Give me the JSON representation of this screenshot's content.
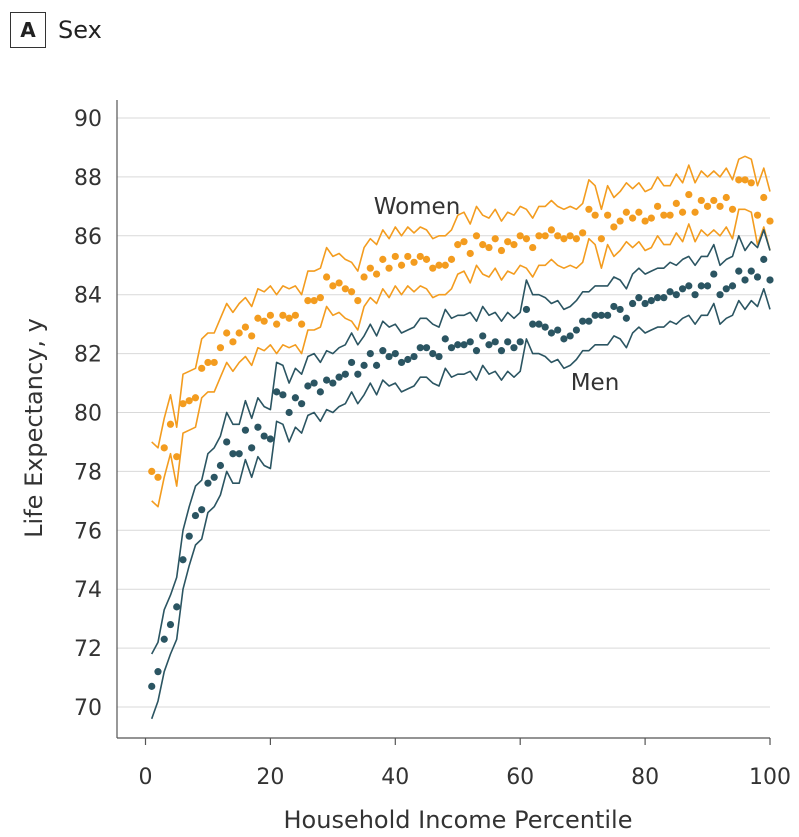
{
  "panel": {
    "letter": "A",
    "title": "Sex"
  },
  "chart_data": {
    "type": "scatter",
    "title": "Sex",
    "xlabel": "Household Income Percentile",
    "ylabel": "Life Expectancy, y",
    "xlim": [
      0,
      100
    ],
    "ylim": [
      69,
      90
    ],
    "xticks": [
      0,
      20,
      40,
      60,
      80,
      100
    ],
    "yticks": [
      70,
      72,
      74,
      76,
      78,
      80,
      82,
      84,
      86,
      88,
      90
    ],
    "grid": "horizontal",
    "legend": "inline labels",
    "series": [
      {
        "name": "Women",
        "color": "#F39C1F",
        "x": [
          1,
          2,
          3,
          4,
          5,
          6,
          7,
          8,
          9,
          10,
          11,
          12,
          13,
          14,
          15,
          16,
          17,
          18,
          19,
          20,
          21,
          22,
          23,
          24,
          25,
          26,
          27,
          28,
          29,
          30,
          31,
          32,
          33,
          34,
          35,
          36,
          37,
          38,
          39,
          40,
          41,
          42,
          43,
          44,
          45,
          46,
          47,
          48,
          49,
          50,
          51,
          52,
          53,
          54,
          55,
          56,
          57,
          58,
          59,
          60,
          61,
          62,
          63,
          64,
          65,
          66,
          67,
          68,
          69,
          70,
          71,
          72,
          73,
          74,
          75,
          76,
          77,
          78,
          79,
          80,
          81,
          82,
          83,
          84,
          85,
          86,
          87,
          88,
          89,
          90,
          91,
          92,
          93,
          94,
          95,
          96,
          97,
          98,
          99,
          100
        ],
        "values": [
          78.0,
          77.8,
          78.8,
          79.6,
          78.5,
          80.3,
          80.4,
          80.5,
          81.5,
          81.7,
          81.7,
          82.2,
          82.7,
          82.4,
          82.7,
          82.9,
          82.6,
          83.2,
          83.1,
          83.3,
          83.0,
          83.3,
          83.2,
          83.3,
          83.0,
          83.8,
          83.8,
          83.9,
          84.6,
          84.3,
          84.4,
          84.2,
          84.1,
          83.8,
          84.6,
          84.9,
          84.7,
          85.2,
          84.9,
          85.3,
          85.0,
          85.3,
          85.1,
          85.3,
          85.2,
          84.9,
          85.0,
          85.0,
          85.2,
          85.7,
          85.8,
          85.4,
          86.0,
          85.7,
          85.6,
          85.9,
          85.5,
          85.8,
          85.7,
          86.0,
          85.9,
          85.6,
          86.0,
          86.0,
          86.2,
          86.0,
          85.9,
          86.0,
          85.9,
          86.1,
          86.9,
          86.7,
          85.9,
          86.7,
          86.3,
          86.5,
          86.8,
          86.6,
          86.8,
          86.5,
          86.6,
          87.0,
          86.7,
          86.7,
          87.1,
          86.8,
          87.4,
          86.8,
          87.2,
          87.0,
          87.2,
          87.0,
          87.3,
          86.9,
          87.9,
          87.9,
          87.8,
          86.7,
          87.3,
          86.5
        ],
        "lower": [
          77.0,
          76.8,
          77.8,
          78.6,
          77.5,
          79.3,
          79.4,
          79.5,
          80.5,
          80.7,
          80.7,
          81.2,
          81.7,
          81.4,
          81.7,
          81.9,
          81.6,
          82.2,
          82.1,
          82.3,
          82.0,
          82.3,
          82.2,
          82.3,
          82.0,
          82.8,
          82.8,
          82.9,
          83.6,
          83.3,
          83.4,
          83.2,
          83.1,
          82.8,
          83.6,
          83.9,
          83.7,
          84.2,
          83.9,
          84.3,
          84.0,
          84.3,
          84.1,
          84.3,
          84.2,
          83.9,
          84.0,
          84.0,
          84.2,
          84.7,
          84.8,
          84.4,
          85.0,
          84.7,
          84.6,
          84.9,
          84.5,
          84.8,
          84.7,
          85.0,
          84.9,
          84.6,
          85.0,
          85.0,
          85.2,
          85.0,
          84.9,
          85.0,
          84.9,
          85.1,
          85.9,
          85.7,
          84.9,
          85.7,
          85.3,
          85.5,
          85.8,
          85.6,
          85.8,
          85.5,
          85.6,
          86.0,
          85.7,
          85.7,
          86.1,
          85.8,
          86.4,
          85.8,
          86.2,
          86.0,
          86.2,
          86.0,
          86.3,
          85.9,
          86.9,
          86.9,
          86.8,
          85.7,
          86.3,
          85.5
        ],
        "upper": [
          79.0,
          78.8,
          79.8,
          80.6,
          79.5,
          81.3,
          81.4,
          81.5,
          82.5,
          82.7,
          82.7,
          83.2,
          83.7,
          83.4,
          83.7,
          83.9,
          83.6,
          84.2,
          84.1,
          84.3,
          84.0,
          84.3,
          84.2,
          84.3,
          84.0,
          84.8,
          84.8,
          84.9,
          85.6,
          85.3,
          85.4,
          85.2,
          85.1,
          84.8,
          85.6,
          85.9,
          85.7,
          86.2,
          85.9,
          86.3,
          86.0,
          86.3,
          86.1,
          86.3,
          86.2,
          85.9,
          86.0,
          86.0,
          86.2,
          86.7,
          86.8,
          86.4,
          87.0,
          86.7,
          86.6,
          86.9,
          86.5,
          86.8,
          86.7,
          87.0,
          86.9,
          86.6,
          87.0,
          87.0,
          87.2,
          87.0,
          86.9,
          87.0,
          86.9,
          87.1,
          87.9,
          87.7,
          86.9,
          87.7,
          87.3,
          87.5,
          87.8,
          87.6,
          87.8,
          87.5,
          87.6,
          88.0,
          87.7,
          87.7,
          88.1,
          87.8,
          88.4,
          87.8,
          88.2,
          88.0,
          88.2,
          88.0,
          88.3,
          87.9,
          88.6,
          88.7,
          88.6,
          87.7,
          88.3,
          87.5
        ]
      },
      {
        "name": "Men",
        "color": "#2B5562",
        "x": [
          1,
          2,
          3,
          4,
          5,
          6,
          7,
          8,
          9,
          10,
          11,
          12,
          13,
          14,
          15,
          16,
          17,
          18,
          19,
          20,
          21,
          22,
          23,
          24,
          25,
          26,
          27,
          28,
          29,
          30,
          31,
          32,
          33,
          34,
          35,
          36,
          37,
          38,
          39,
          40,
          41,
          42,
          43,
          44,
          45,
          46,
          47,
          48,
          49,
          50,
          51,
          52,
          53,
          54,
          55,
          56,
          57,
          58,
          59,
          60,
          61,
          62,
          63,
          64,
          65,
          66,
          67,
          68,
          69,
          70,
          71,
          72,
          73,
          74,
          75,
          76,
          77,
          78,
          79,
          80,
          81,
          82,
          83,
          84,
          85,
          86,
          87,
          88,
          89,
          90,
          91,
          92,
          93,
          94,
          95,
          96,
          97,
          98,
          99,
          100
        ],
        "values": [
          70.7,
          71.2,
          72.3,
          72.8,
          73.4,
          75.0,
          75.8,
          76.5,
          76.7,
          77.6,
          77.8,
          78.2,
          79.0,
          78.6,
          78.6,
          79.4,
          78.8,
          79.5,
          79.2,
          79.1,
          80.7,
          80.6,
          80.0,
          80.5,
          80.3,
          80.9,
          81.0,
          80.7,
          81.1,
          81.0,
          81.2,
          81.3,
          81.7,
          81.3,
          81.6,
          82.0,
          81.6,
          82.1,
          81.9,
          82.0,
          81.7,
          81.8,
          81.9,
          82.2,
          82.2,
          82.0,
          81.9,
          82.5,
          82.2,
          82.3,
          82.3,
          82.4,
          82.1,
          82.6,
          82.3,
          82.4,
          82.1,
          82.4,
          82.2,
          82.4,
          83.5,
          83.0,
          83.0,
          82.9,
          82.7,
          82.8,
          82.5,
          82.6,
          82.8,
          83.1,
          83.1,
          83.3,
          83.3,
          83.3,
          83.6,
          83.5,
          83.2,
          83.7,
          83.9,
          83.7,
          83.8,
          83.9,
          83.9,
          84.1,
          84.0,
          84.2,
          84.3,
          84.0,
          84.3,
          84.3,
          84.7,
          84.0,
          84.2,
          84.3,
          84.8,
          84.5,
          84.8,
          84.6,
          85.2,
          84.5
        ],
        "lower": [
          69.6,
          70.2,
          71.2,
          71.8,
          72.3,
          74.0,
          74.8,
          75.5,
          75.7,
          76.6,
          76.8,
          77.2,
          78.0,
          77.6,
          77.6,
          78.4,
          77.8,
          78.5,
          78.2,
          78.1,
          79.7,
          79.6,
          79.0,
          79.5,
          79.3,
          79.9,
          80.0,
          79.7,
          80.1,
          80.0,
          80.2,
          80.3,
          80.7,
          80.3,
          80.6,
          81.0,
          80.6,
          81.1,
          80.9,
          81.0,
          80.7,
          80.8,
          80.9,
          81.2,
          81.2,
          81.0,
          80.9,
          81.5,
          81.2,
          81.3,
          81.3,
          81.4,
          81.1,
          81.6,
          81.3,
          81.4,
          81.1,
          81.4,
          81.2,
          81.4,
          82.5,
          82.0,
          82.0,
          81.9,
          81.7,
          81.8,
          81.5,
          81.6,
          81.8,
          82.1,
          82.1,
          82.3,
          82.3,
          82.3,
          82.6,
          82.5,
          82.2,
          82.7,
          82.9,
          82.7,
          82.8,
          82.9,
          82.9,
          83.1,
          83.0,
          83.2,
          83.3,
          83.0,
          83.3,
          83.3,
          83.7,
          83.0,
          83.2,
          83.3,
          83.8,
          83.5,
          83.8,
          83.6,
          84.2,
          83.5
        ],
        "upper": [
          71.8,
          72.2,
          73.3,
          73.8,
          74.4,
          76.0,
          76.8,
          77.5,
          77.7,
          78.6,
          78.8,
          79.2,
          80.0,
          79.6,
          79.6,
          80.4,
          79.8,
          80.5,
          80.2,
          80.1,
          81.7,
          81.6,
          81.0,
          81.5,
          81.3,
          81.9,
          82.0,
          81.7,
          82.1,
          82.0,
          82.2,
          82.3,
          82.7,
          82.3,
          82.6,
          83.0,
          82.6,
          83.1,
          82.9,
          83.0,
          82.7,
          82.8,
          82.9,
          83.2,
          83.2,
          83.0,
          82.9,
          83.5,
          83.2,
          83.3,
          83.3,
          83.4,
          83.1,
          83.6,
          83.3,
          83.4,
          83.1,
          83.4,
          83.2,
          83.4,
          84.5,
          84.0,
          84.0,
          83.9,
          83.7,
          83.8,
          83.5,
          83.6,
          83.8,
          84.1,
          84.1,
          84.3,
          84.3,
          84.3,
          84.6,
          84.5,
          84.2,
          84.7,
          84.9,
          84.7,
          84.8,
          84.9,
          84.9,
          85.1,
          85.0,
          85.2,
          85.3,
          85.0,
          85.3,
          85.3,
          85.7,
          85.0,
          85.2,
          85.3,
          86.0,
          85.5,
          85.8,
          85.6,
          86.2,
          85.5
        ]
      }
    ]
  }
}
